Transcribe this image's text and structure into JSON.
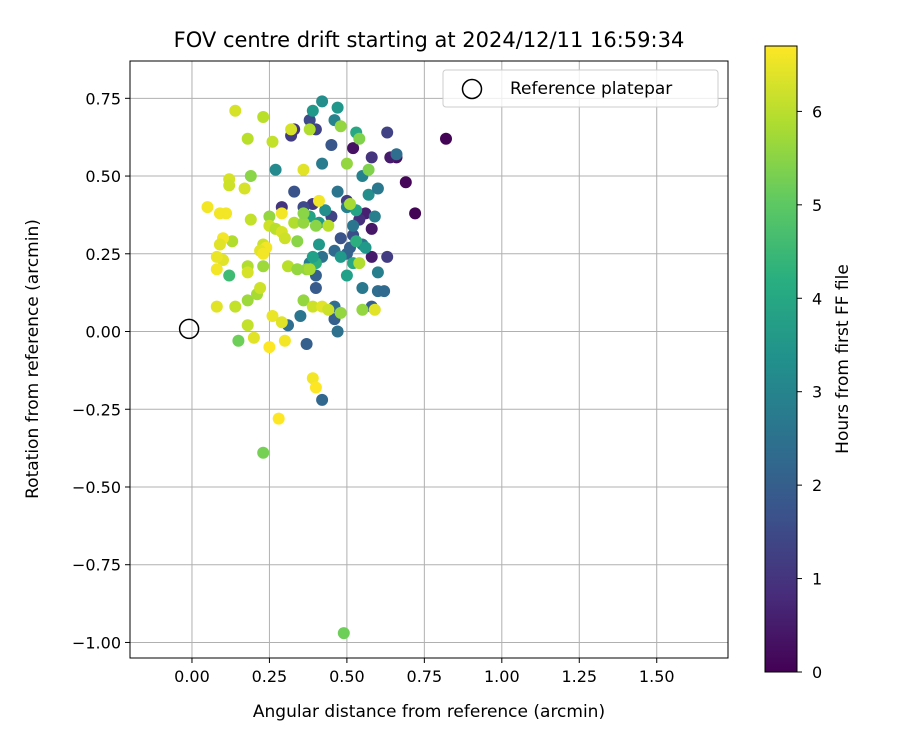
{
  "chart_data": {
    "type": "scatter",
    "title": "FOV centre drift starting at 2024/12/11 16:59:34",
    "xlabel": "Angular distance from reference (arcmin)",
    "ylabel": "Rotation from reference (arcmin)",
    "xlim": [
      -0.2,
      1.73
    ],
    "ylim": [
      -1.05,
      0.87
    ],
    "x_ticks": [
      0.0,
      0.25,
      0.5,
      0.75,
      1.0,
      1.25,
      1.5
    ],
    "x_tick_labels": [
      "0.00",
      "0.25",
      "0.50",
      "0.75",
      "1.00",
      "1.25",
      "1.50"
    ],
    "y_ticks": [
      0.75,
      0.5,
      0.25,
      0.0,
      -0.25,
      -0.5,
      -0.75,
      -1.0
    ],
    "y_tick_labels": [
      "0.75",
      "0.50",
      "0.25",
      "0.00",
      "−0.25",
      "−0.50",
      "−0.75",
      "−1.00"
    ],
    "grid": true,
    "legend": {
      "placement": "top-right",
      "label": "Reference platepar"
    },
    "reference_point": {
      "x": 0.0,
      "y": 0.0
    },
    "colorbar": {
      "label": "Hours from first FF file",
      "range": [
        0,
        6.7
      ],
      "ticks": [
        0,
        1,
        2,
        3,
        4,
        5,
        6
      ],
      "tick_labels": [
        "0",
        "1",
        "2",
        "3",
        "4",
        "5",
        "6"
      ],
      "colormap": "viridis"
    },
    "points": [
      [
        0.82,
        0.62,
        0.05
      ],
      [
        0.72,
        0.38,
        0.05
      ],
      [
        0.69,
        0.48,
        0.1
      ],
      [
        0.66,
        0.56,
        0.3
      ],
      [
        0.64,
        0.56,
        0.5
      ],
      [
        0.52,
        0.59,
        0.3
      ],
      [
        0.58,
        0.56,
        1.0
      ],
      [
        0.63,
        0.64,
        1.3
      ],
      [
        0.58,
        0.33,
        0.4
      ],
      [
        0.58,
        0.24,
        0.5
      ],
      [
        0.56,
        0.38,
        0.6
      ],
      [
        0.54,
        0.36,
        0.9
      ],
      [
        0.5,
        0.42,
        1.2
      ],
      [
        0.45,
        0.37,
        1.3
      ],
      [
        0.39,
        0.41,
        1.1
      ],
      [
        0.36,
        0.4,
        1.5
      ],
      [
        0.33,
        0.45,
        1.7
      ],
      [
        0.29,
        0.4,
        1.0
      ],
      [
        0.32,
        0.63,
        1.2
      ],
      [
        0.33,
        0.65,
        1.0
      ],
      [
        0.38,
        0.68,
        1.5
      ],
      [
        0.4,
        0.65,
        1.3
      ],
      [
        0.45,
        0.6,
        1.8
      ],
      [
        0.63,
        0.24,
        1.2
      ],
      [
        0.52,
        0.31,
        1.6
      ],
      [
        0.48,
        0.3,
        1.7
      ],
      [
        0.51,
        0.27,
        2.0
      ],
      [
        0.5,
        0.25,
        2.1
      ],
      [
        0.46,
        0.26,
        2.3
      ],
      [
        0.42,
        0.24,
        2.5
      ],
      [
        0.4,
        0.18,
        2.0
      ],
      [
        0.4,
        0.14,
        1.9
      ],
      [
        0.38,
        0.22,
        2.8
      ],
      [
        0.46,
        0.04,
        2.0
      ],
      [
        0.47,
        0.0,
        2.5
      ],
      [
        0.42,
        -0.22,
        2.2
      ],
      [
        0.37,
        -0.04,
        2.0
      ],
      [
        0.31,
        0.02,
        2.4
      ],
      [
        0.35,
        0.05,
        2.6
      ],
      [
        0.46,
        0.08,
        2.4
      ],
      [
        0.6,
        0.13,
        2.4
      ],
      [
        0.62,
        0.13,
        2.3
      ],
      [
        0.6,
        0.19,
        2.9
      ],
      [
        0.58,
        0.08,
        2.0
      ],
      [
        0.55,
        0.14,
        2.7
      ],
      [
        0.55,
        0.28,
        2.6
      ],
      [
        0.52,
        0.34,
        2.6
      ],
      [
        0.55,
        0.5,
        3.0
      ],
      [
        0.57,
        0.44,
        3.3
      ],
      [
        0.6,
        0.46,
        2.7
      ],
      [
        0.59,
        0.37,
        2.9
      ],
      [
        0.66,
        0.57,
        2.4
      ],
      [
        0.5,
        0.4,
        2.9
      ],
      [
        0.47,
        0.45,
        2.6
      ],
      [
        0.46,
        0.68,
        3.0
      ],
      [
        0.47,
        0.72,
        3.5
      ],
      [
        0.42,
        0.74,
        3.3
      ],
      [
        0.42,
        0.54,
        2.8
      ],
      [
        0.39,
        0.71,
        3.6
      ],
      [
        0.27,
        0.52,
        3.2
      ],
      [
        0.43,
        0.39,
        3.3
      ],
      [
        0.41,
        0.35,
        3.6
      ],
      [
        0.38,
        0.37,
        3.9
      ],
      [
        0.41,
        0.28,
        3.6
      ],
      [
        0.4,
        0.22,
        4.2
      ],
      [
        0.39,
        0.24,
        3.8
      ],
      [
        0.48,
        0.24,
        3.6
      ],
      [
        0.5,
        0.18,
        3.8
      ],
      [
        0.52,
        0.22,
        4.0
      ],
      [
        0.53,
        0.29,
        4.2
      ],
      [
        0.53,
        0.39,
        3.9
      ],
      [
        0.56,
        0.27,
        3.6
      ],
      [
        0.53,
        0.64,
        4.0
      ],
      [
        0.48,
        0.66,
        5.6
      ],
      [
        0.54,
        0.62,
        5.4
      ],
      [
        0.5,
        0.54,
        5.6
      ],
      [
        0.57,
        0.52,
        5.4
      ],
      [
        0.41,
        0.42,
        6.6
      ],
      [
        0.36,
        0.52,
        6.4
      ],
      [
        0.38,
        0.65,
        5.9
      ],
      [
        0.32,
        0.65,
        6.3
      ],
      [
        0.26,
        0.61,
        6.1
      ],
      [
        0.23,
        0.69,
        6.0
      ],
      [
        0.14,
        0.71,
        6.3
      ],
      [
        0.18,
        0.62,
        6.0
      ],
      [
        0.19,
        0.5,
        5.5
      ],
      [
        0.12,
        0.49,
        6.3
      ],
      [
        0.12,
        0.47,
        6.2
      ],
      [
        0.17,
        0.46,
        6.3
      ],
      [
        0.05,
        0.4,
        6.6
      ],
      [
        0.09,
        0.38,
        6.6
      ],
      [
        0.11,
        0.38,
        6.6
      ],
      [
        0.19,
        0.36,
        6.1
      ],
      [
        0.25,
        0.37,
        5.6
      ],
      [
        0.29,
        0.38,
        6.6
      ],
      [
        0.33,
        0.35,
        5.9
      ],
      [
        0.36,
        0.35,
        5.6
      ],
      [
        0.36,
        0.38,
        5.5
      ],
      [
        0.4,
        0.34,
        5.5
      ],
      [
        0.44,
        0.34,
        6.0
      ],
      [
        0.25,
        0.34,
        6.2
      ],
      [
        0.27,
        0.33,
        6.0
      ],
      [
        0.29,
        0.32,
        6.3
      ],
      [
        0.3,
        0.3,
        6.2
      ],
      [
        0.34,
        0.29,
        5.5
      ],
      [
        0.13,
        0.29,
        5.9
      ],
      [
        0.1,
        0.3,
        6.6
      ],
      [
        0.09,
        0.28,
        6.4
      ],
      [
        0.1,
        0.23,
        6.4
      ],
      [
        0.08,
        0.24,
        6.5
      ],
      [
        0.12,
        0.18,
        4.6
      ],
      [
        0.23,
        0.28,
        6.2
      ],
      [
        0.24,
        0.27,
        6.6
      ],
      [
        0.22,
        0.26,
        6.4
      ],
      [
        0.23,
        0.25,
        6.6
      ],
      [
        0.23,
        0.21,
        5.7
      ],
      [
        0.18,
        0.21,
        5.9
      ],
      [
        0.18,
        0.19,
        6.3
      ],
      [
        0.08,
        0.2,
        6.6
      ],
      [
        0.31,
        0.21,
        6.0
      ],
      [
        0.34,
        0.2,
        5.6
      ],
      [
        0.37,
        0.2,
        5.6
      ],
      [
        0.38,
        0.2,
        5.8
      ],
      [
        0.36,
        0.1,
        5.6
      ],
      [
        0.39,
        0.08,
        6.2
      ],
      [
        0.42,
        0.08,
        6.4
      ],
      [
        0.44,
        0.07,
        6.2
      ],
      [
        0.48,
        0.06,
        5.6
      ],
      [
        0.55,
        0.07,
        5.6
      ],
      [
        0.59,
        0.07,
        6.4
      ],
      [
        0.54,
        0.22,
        5.9
      ],
      [
        0.51,
        0.41,
        5.8
      ],
      [
        0.18,
        0.1,
        5.7
      ],
      [
        0.21,
        0.12,
        5.8
      ],
      [
        0.22,
        0.14,
        6.2
      ],
      [
        0.14,
        0.08,
        6.1
      ],
      [
        0.08,
        0.08,
        6.4
      ],
      [
        0.18,
        0.02,
        6.1
      ],
      [
        0.2,
        -0.02,
        6.4
      ],
      [
        0.15,
        -0.03,
        5.2
      ],
      [
        0.26,
        0.05,
        6.5
      ],
      [
        0.29,
        0.03,
        6.4
      ],
      [
        0.3,
        -0.03,
        6.6
      ],
      [
        0.25,
        -0.05,
        6.7
      ],
      [
        0.39,
        -0.15,
        6.6
      ],
      [
        0.4,
        -0.18,
        6.7
      ],
      [
        0.28,
        -0.28,
        6.7
      ],
      [
        0.23,
        -0.39,
        5.3
      ],
      [
        0.49,
        -0.97,
        5.2
      ]
    ]
  }
}
